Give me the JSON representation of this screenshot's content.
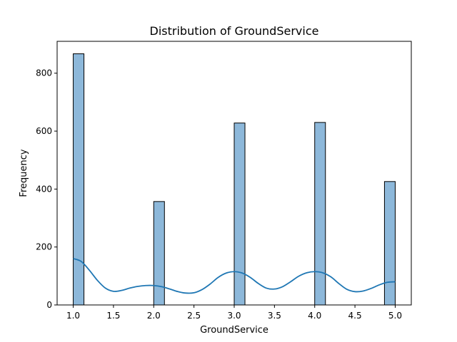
{
  "chart_data": {
    "type": "bar",
    "title": "Distribution of GroundService",
    "xlabel": "GroundService",
    "ylabel": "Frequency",
    "xlim": [
      0.8,
      5.2
    ],
    "ylim": [
      0,
      910
    ],
    "x_ticks": [
      1.0,
      1.5,
      2.0,
      2.5,
      3.0,
      3.5,
      4.0,
      4.5,
      5.0
    ],
    "x_tick_labels": [
      "1.0",
      "1.5",
      "2.0",
      "2.5",
      "3.0",
      "3.5",
      "4.0",
      "4.5",
      "5.0"
    ],
    "y_ticks": [
      0,
      200,
      400,
      600,
      800
    ],
    "y_tick_labels": [
      "0",
      "200",
      "400",
      "600",
      "800"
    ],
    "bins": [
      {
        "x0": 1.0,
        "x1": 1.1333,
        "count": 867
      },
      {
        "x0": 2.0,
        "x1": 2.1333,
        "count": 357
      },
      {
        "x0": 3.0,
        "x1": 3.1333,
        "count": 628
      },
      {
        "x0": 4.0,
        "x1": 4.1333,
        "count": 630
      },
      {
        "x0": 4.8667,
        "x1": 5.0,
        "count": 426
      }
    ],
    "kde": {
      "x": [
        1.0,
        1.1,
        1.2,
        1.3,
        1.4,
        1.5,
        1.6,
        1.7,
        1.8,
        1.9,
        2.0,
        2.1,
        2.2,
        2.3,
        2.4,
        2.5,
        2.6,
        2.7,
        2.8,
        2.9,
        3.0,
        3.1,
        3.2,
        3.3,
        3.4,
        3.5,
        3.6,
        3.7,
        3.8,
        3.9,
        4.0,
        4.1,
        4.2,
        4.3,
        4.4,
        4.5,
        4.6,
        4.7,
        4.8,
        4.9,
        5.0
      ],
      "y": [
        160,
        150,
        120,
        85,
        58,
        47,
        50,
        58,
        64,
        67,
        67,
        63,
        55,
        46,
        41,
        42,
        53,
        72,
        95,
        110,
        115,
        110,
        95,
        74,
        58,
        55,
        63,
        80,
        99,
        111,
        115,
        111,
        97,
        74,
        54,
        46,
        48,
        57,
        69,
        78,
        80
      ]
    },
    "colors": {
      "bar_fill": "#8db8da",
      "bar_edge": "#000000",
      "kde_line": "#1f77b4"
    },
    "grid": false,
    "legend": "none"
  }
}
